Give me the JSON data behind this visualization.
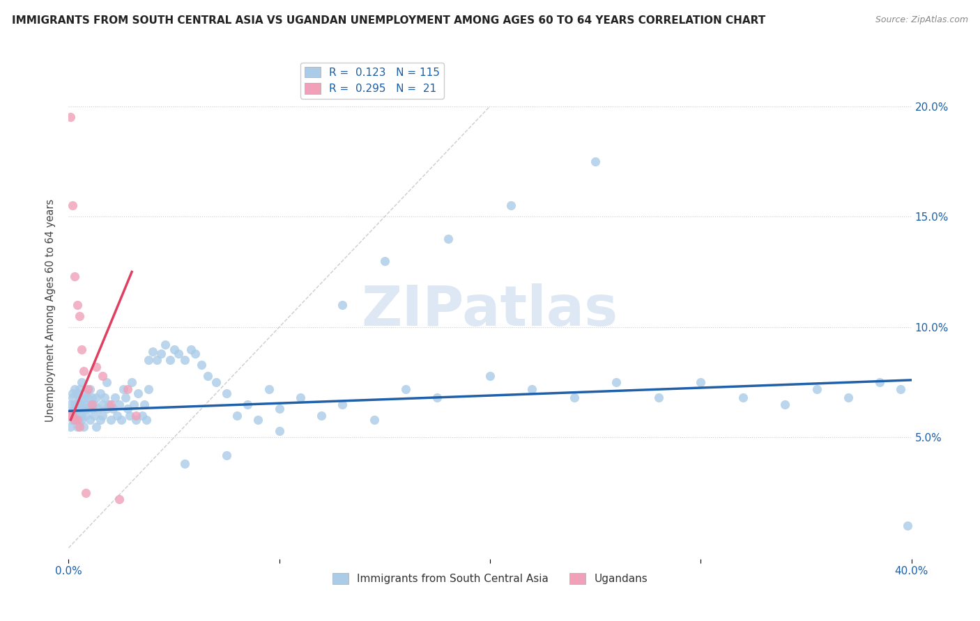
{
  "title": "IMMIGRANTS FROM SOUTH CENTRAL ASIA VS UGANDAN UNEMPLOYMENT AMONG AGES 60 TO 64 YEARS CORRELATION CHART",
  "source": "Source: ZipAtlas.com",
  "ylabel": "Unemployment Among Ages 60 to 64 years",
  "xlim": [
    0.0,
    0.4
  ],
  "ylim": [
    -0.005,
    0.22
  ],
  "blue_color": "#aacce8",
  "blue_line_color": "#2060a8",
  "pink_color": "#f0a0b8",
  "pink_line_color": "#e04060",
  "diag_color": "#cccccc",
  "watermark": "ZIPatlas",
  "legend_blue_R": "0.123",
  "legend_blue_N": "115",
  "legend_pink_R": "0.295",
  "legend_pink_N": "21",
  "blue_scatter_x": [
    0.001,
    0.001,
    0.001,
    0.002,
    0.002,
    0.002,
    0.002,
    0.003,
    0.003,
    0.003,
    0.003,
    0.004,
    0.004,
    0.004,
    0.004,
    0.005,
    0.005,
    0.005,
    0.005,
    0.005,
    0.006,
    0.006,
    0.006,
    0.006,
    0.007,
    0.007,
    0.007,
    0.008,
    0.008,
    0.008,
    0.009,
    0.009,
    0.01,
    0.01,
    0.01,
    0.011,
    0.011,
    0.012,
    0.012,
    0.013,
    0.013,
    0.014,
    0.015,
    0.015,
    0.016,
    0.016,
    0.017,
    0.018,
    0.018,
    0.019,
    0.02,
    0.021,
    0.022,
    0.023,
    0.024,
    0.025,
    0.026,
    0.027,
    0.028,
    0.029,
    0.03,
    0.031,
    0.032,
    0.033,
    0.035,
    0.036,
    0.037,
    0.038,
    0.04,
    0.042,
    0.044,
    0.046,
    0.048,
    0.05,
    0.052,
    0.055,
    0.058,
    0.06,
    0.063,
    0.066,
    0.07,
    0.075,
    0.08,
    0.085,
    0.09,
    0.095,
    0.1,
    0.11,
    0.12,
    0.13,
    0.145,
    0.16,
    0.175,
    0.2,
    0.22,
    0.24,
    0.26,
    0.28,
    0.3,
    0.32,
    0.34,
    0.355,
    0.37,
    0.385,
    0.395,
    0.398,
    0.25,
    0.21,
    0.18,
    0.15,
    0.13,
    0.1,
    0.075,
    0.055,
    0.038
  ],
  "blue_scatter_y": [
    0.065,
    0.06,
    0.055,
    0.068,
    0.062,
    0.058,
    0.07,
    0.065,
    0.06,
    0.058,
    0.072,
    0.065,
    0.06,
    0.055,
    0.07,
    0.063,
    0.068,
    0.058,
    0.072,
    0.065,
    0.065,
    0.06,
    0.075,
    0.058,
    0.063,
    0.068,
    0.055,
    0.065,
    0.07,
    0.06,
    0.063,
    0.068,
    0.065,
    0.058,
    0.072,
    0.063,
    0.068,
    0.065,
    0.06,
    0.068,
    0.055,
    0.063,
    0.07,
    0.058,
    0.065,
    0.06,
    0.068,
    0.063,
    0.075,
    0.065,
    0.058,
    0.063,
    0.068,
    0.06,
    0.065,
    0.058,
    0.072,
    0.068,
    0.063,
    0.06,
    0.075,
    0.065,
    0.058,
    0.07,
    0.06,
    0.065,
    0.058,
    0.072,
    0.089,
    0.085,
    0.088,
    0.092,
    0.085,
    0.09,
    0.088,
    0.085,
    0.09,
    0.088,
    0.083,
    0.078,
    0.075,
    0.07,
    0.06,
    0.065,
    0.058,
    0.072,
    0.063,
    0.068,
    0.06,
    0.065,
    0.058,
    0.072,
    0.068,
    0.078,
    0.072,
    0.068,
    0.075,
    0.068,
    0.075,
    0.068,
    0.065,
    0.072,
    0.068,
    0.075,
    0.072,
    0.01,
    0.175,
    0.155,
    0.14,
    0.13,
    0.11,
    0.053,
    0.042,
    0.038,
    0.085
  ],
  "pink_scatter_x": [
    0.001,
    0.001,
    0.002,
    0.002,
    0.003,
    0.003,
    0.004,
    0.004,
    0.005,
    0.005,
    0.006,
    0.007,
    0.008,
    0.009,
    0.011,
    0.013,
    0.016,
    0.02,
    0.024,
    0.028,
    0.032
  ],
  "pink_scatter_y": [
    0.195,
    0.06,
    0.155,
    0.06,
    0.123,
    0.058,
    0.11,
    0.058,
    0.105,
    0.055,
    0.09,
    0.08,
    0.025,
    0.072,
    0.065,
    0.082,
    0.078,
    0.065,
    0.022,
    0.072,
    0.06
  ],
  "blue_trend_x": [
    0.0,
    0.4
  ],
  "blue_trend_y": [
    0.062,
    0.076
  ],
  "pink_trend_x": [
    0.001,
    0.03
  ],
  "pink_trend_y": [
    0.058,
    0.125
  ]
}
